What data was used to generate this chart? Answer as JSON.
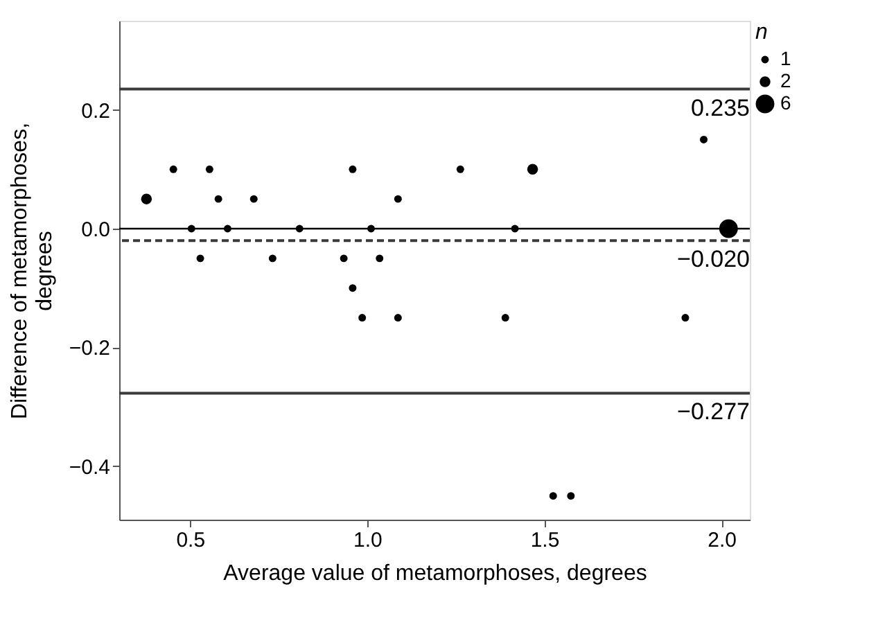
{
  "chart_data": {
    "type": "scatter",
    "xlabel": "Average value of metamorphoses, degrees",
    "ylabel": "Difference of metamorphoses, degrees",
    "legend_title": "n",
    "legend": "right",
    "marker": "circle",
    "grid": false,
    "x": [
      0.453,
      0.555,
      0.959,
      1.263,
      1.467,
      0.377,
      0.58,
      0.68,
      1.087,
      0.504,
      0.606,
      0.809,
      1.011,
      1.417,
      2.02,
      0.529,
      0.733,
      0.934,
      1.035,
      0.959,
      0.986,
      1.087,
      1.39,
      1.898,
      1.95,
      1.525,
      1.575
    ],
    "series": [
      {
        "color": "#000000",
        "values": [
          0.1,
          0.1,
          0.1,
          0.1,
          0.1,
          0.05,
          0.05,
          0.05,
          0.05,
          0,
          0,
          0,
          0,
          0,
          0,
          -0.05,
          -0.05,
          -0.05,
          -0.05,
          -0.1,
          -0.15,
          -0.15,
          -0.15,
          -0.15,
          0.15,
          -0.45,
          -0.45
        ],
        "sizes": [
          1,
          1,
          1,
          1,
          2,
          2,
          1,
          1,
          1,
          1,
          1,
          1,
          1,
          1,
          6,
          1,
          1,
          1,
          1,
          1,
          1,
          1,
          1,
          1,
          1,
          1,
          1
        ]
      }
    ],
    "size_legend": [
      1,
      2,
      6
    ],
    "xlim": [
      0.3,
      2.08
    ],
    "ylim": [
      -0.49,
      0.35
    ],
    "xticks": [
      {
        "value": 0.5,
        "label": "0.5"
      },
      {
        "value": 1.0,
        "label": "1.0"
      },
      {
        "value": 1.5,
        "label": "1.5"
      },
      {
        "value": 2.0,
        "label": "2.0"
      }
    ],
    "yticks": [
      {
        "value": -0.4,
        "label": "−0.4"
      },
      {
        "value": -0.2,
        "label": "−0.2"
      },
      {
        "value": 0.0,
        "label": "0.0"
      },
      {
        "value": 0.2,
        "label": "0.2"
      }
    ],
    "ref_lines": [
      {
        "axis": "y",
        "value": 0.235,
        "label": "0.235",
        "color": "#3a3a3a",
        "line_style": "solid"
      },
      {
        "axis": "y",
        "value": 0,
        "label": null,
        "color": "#000000",
        "line_style": "solid"
      },
      {
        "axis": "y",
        "value": -0.02,
        "label": "−0.020",
        "color": "#3a3a3a",
        "line_style": "dashed"
      },
      {
        "axis": "y",
        "value": -0.277,
        "label": "−0.277",
        "color": "#3a3a3a",
        "line_style": "solid"
      }
    ]
  }
}
